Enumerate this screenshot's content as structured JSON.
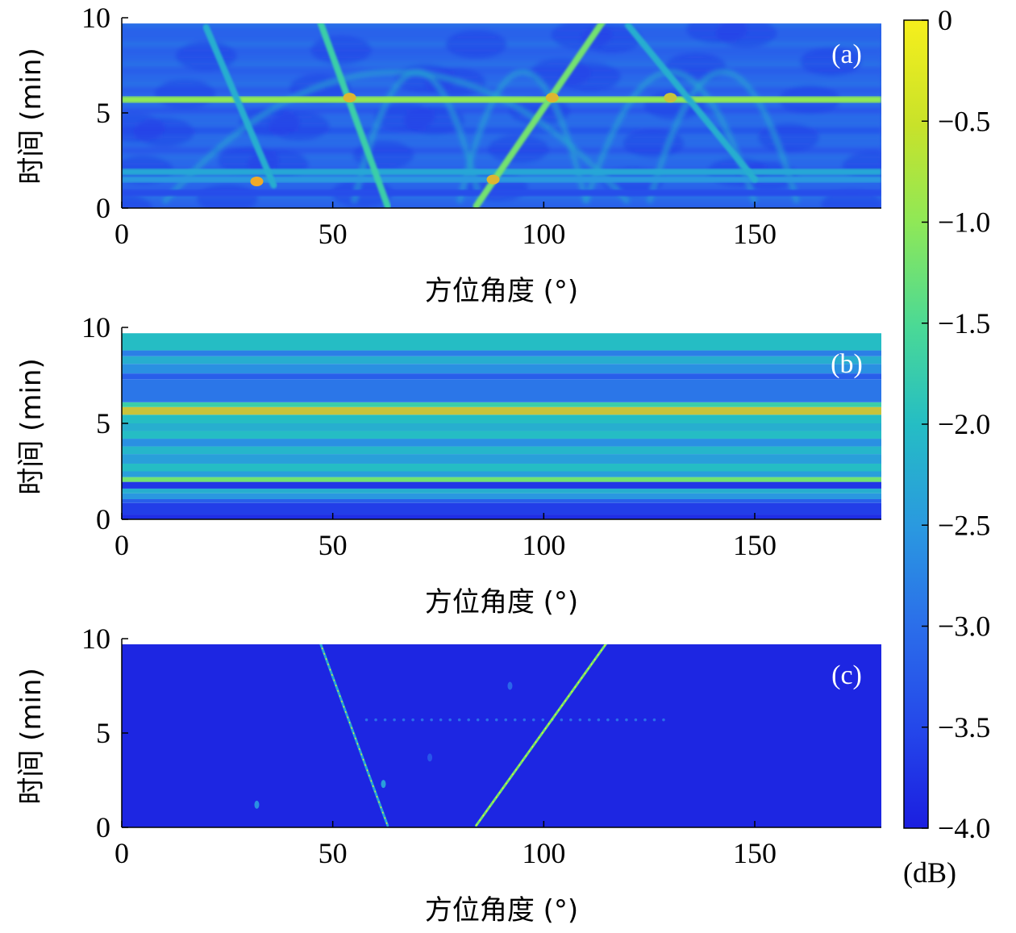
{
  "chart_data": [
    {
      "type": "heatmap",
      "panel_label": "(a)",
      "xlabel": "方位角度 (°)",
      "ylabel": "时间 (min)",
      "xlim": [
        0,
        180
      ],
      "ylim": [
        0,
        10
      ],
      "x_ticks": [
        "0",
        "50",
        "100",
        "150"
      ],
      "y_ticks": [
        "0",
        "5",
        "10"
      ],
      "background_level_db": -3.2,
      "horizontal_bands": [
        {
          "t": 5.7,
          "db": -1.0
        },
        {
          "t": 1.9,
          "db": -2.3
        },
        {
          "t": 1.5,
          "db": -2.5
        },
        {
          "t": 0.8,
          "db": -3.4
        }
      ],
      "tracks": [
        {
          "from": [
            47,
            9.8
          ],
          "to": [
            63,
            0.1
          ],
          "db": -1.7
        },
        {
          "from": [
            84,
            0.1
          ],
          "to": [
            114,
            9.8
          ],
          "db": -1.2
        },
        {
          "from": [
            20,
            9.5
          ],
          "to": [
            36,
            1.2
          ],
          "db": -2.2
        },
        {
          "from": [
            120,
            9.6
          ],
          "to": [
            150,
            1.5
          ],
          "db": -2.2
        }
      ],
      "hot_spots": [
        {
          "x": 32,
          "t": 1.4,
          "db": -0.5
        },
        {
          "x": 88,
          "t": 1.5,
          "db": -0.6
        },
        {
          "x": 102,
          "t": 5.8,
          "db": -0.6
        },
        {
          "x": 54,
          "t": 5.8,
          "db": -0.6
        },
        {
          "x": 130,
          "t": 5.8,
          "db": -0.7
        }
      ]
    },
    {
      "type": "heatmap",
      "panel_label": "(b)",
      "xlabel": "方位角度 (°)",
      "ylabel": "时间 (min)",
      "xlim": [
        0,
        180
      ],
      "ylim": [
        0,
        10
      ],
      "x_ticks": [
        "0",
        "50",
        "100",
        "150"
      ],
      "y_ticks": [
        "0",
        "5",
        "10"
      ],
      "rows": [
        {
          "t0": 0.0,
          "t1": 0.25,
          "db": -3.8
        },
        {
          "t0": 0.25,
          "t1": 0.85,
          "db": -3.6
        },
        {
          "t0": 0.85,
          "t1": 1.05,
          "db": -3.2
        },
        {
          "t0": 1.05,
          "t1": 1.35,
          "db": -2.5
        },
        {
          "t0": 1.35,
          "t1": 1.6,
          "db": -2.2
        },
        {
          "t0": 1.6,
          "t1": 1.95,
          "db": -3.7
        },
        {
          "t0": 1.95,
          "t1": 2.2,
          "db": -1.2
        },
        {
          "t0": 2.2,
          "t1": 2.5,
          "db": -2.4
        },
        {
          "t0": 2.5,
          "t1": 2.9,
          "db": -2.0
        },
        {
          "t0": 2.9,
          "t1": 3.4,
          "db": -2.4
        },
        {
          "t0": 3.4,
          "t1": 3.8,
          "db": -2.1
        },
        {
          "t0": 3.8,
          "t1": 4.2,
          "db": -2.6
        },
        {
          "t0": 4.2,
          "t1": 4.6,
          "db": -2.0
        },
        {
          "t0": 4.6,
          "t1": 5.0,
          "db": -2.2
        },
        {
          "t0": 5.0,
          "t1": 5.45,
          "db": -2.0
        },
        {
          "t0": 5.45,
          "t1": 5.85,
          "db": -0.7
        },
        {
          "t0": 5.85,
          "t1": 6.1,
          "db": -1.7
        },
        {
          "t0": 6.1,
          "t1": 7.3,
          "db": -2.9
        },
        {
          "t0": 7.3,
          "t1": 7.6,
          "db": -3.2
        },
        {
          "t0": 7.6,
          "t1": 8.1,
          "db": -2.6
        },
        {
          "t0": 8.1,
          "t1": 8.5,
          "db": -2.2
        },
        {
          "t0": 8.5,
          "t1": 8.8,
          "db": -2.8
        },
        {
          "t0": 8.8,
          "t1": 9.7,
          "db": -2.0
        }
      ]
    },
    {
      "type": "heatmap",
      "panel_label": "(c)",
      "xlabel": "方位角度 (°)",
      "ylabel": "时间 (min)",
      "xlim": [
        0,
        180
      ],
      "ylim": [
        0,
        10
      ],
      "x_ticks": [
        "0",
        "50",
        "100",
        "150"
      ],
      "y_ticks": [
        "0",
        "5",
        "10"
      ],
      "background_level_db": -3.9,
      "tracks": [
        {
          "from": [
            47,
            9.8
          ],
          "to": [
            63,
            0.1
          ],
          "db": -2.3
        },
        {
          "from": [
            84,
            0.1
          ],
          "to": [
            115,
            9.8
          ],
          "db": -1.2
        }
      ],
      "dotted_row": {
        "t": 5.7,
        "x_from": 58,
        "x_to": 130,
        "db": -3.0
      },
      "speckles": [
        {
          "x": 32,
          "t": 1.2,
          "db": -2.6
        },
        {
          "x": 62,
          "t": 2.3,
          "db": -2.4
        },
        {
          "x": 92,
          "t": 7.5,
          "db": -3.1
        },
        {
          "x": 73,
          "t": 3.7,
          "db": -3.3
        }
      ]
    }
  ],
  "colorbar": {
    "ticks": [
      "0",
      "−0.5",
      "−1.0",
      "−1.5",
      "−2.0",
      "−2.5",
      "−3.0",
      "−3.5",
      "−4.0"
    ],
    "range": [
      -4.0,
      0
    ],
    "unit": "(dB)",
    "colors": [
      "#1d1fe6",
      "#2a6ae8",
      "#27b0cf",
      "#4ae39a",
      "#8ff04a",
      "#d9e61b",
      "#f2a21f",
      "#f6e01b"
    ]
  }
}
